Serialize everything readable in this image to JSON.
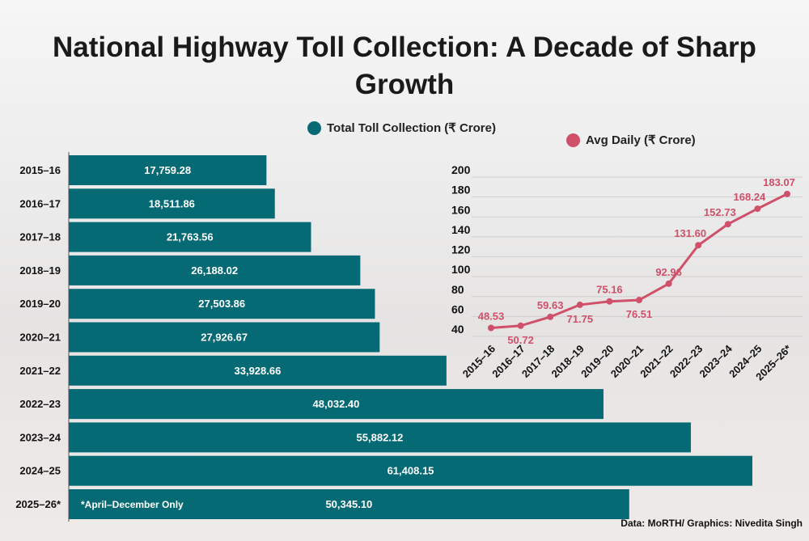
{
  "title": "National Highway Toll Collection: A Decade of Sharp Growth",
  "footnote": "*April–December Only",
  "source": "Data: MoRTH/ Graphics: Nivedita Singh",
  "colors": {
    "bar": "#066a75",
    "line": "#d0506a"
  },
  "chart_data": [
    {
      "type": "bar",
      "orientation": "horizontal",
      "legend": "Total Toll Collection (₹ Crore)",
      "categories": [
        "2015–16",
        "2016–17",
        "2017–18",
        "2018–19",
        "2019–20",
        "2020–21",
        "2021–22",
        "2022–23",
        "2023–24",
        "2024–25",
        "2025–26*"
      ],
      "values": [
        17759.28,
        18511.86,
        21763.56,
        26188.02,
        27503.86,
        27926.67,
        33928.66,
        48032.4,
        55882.12,
        61408.15,
        50345.1
      ],
      "labels": [
        "17,759.28",
        "18,511.86",
        "21,763.56",
        "26,188.02",
        "27,503.86",
        "27,926.67",
        "33,928.66",
        "48,032.40",
        "55,882.12",
        "61,408.15",
        "50,345.10"
      ]
    },
    {
      "type": "line",
      "legend": "Avg Daily (₹ Crore)",
      "categories": [
        "2015–16",
        "2016–17",
        "2017–18",
        "2018–19",
        "2019–20",
        "2020–21",
        "2021–22",
        "2022–23",
        "2023–24",
        "2024–25",
        "2025–26*"
      ],
      "values": [
        48.53,
        50.72,
        59.63,
        71.75,
        75.16,
        76.51,
        92.96,
        131.6,
        152.73,
        168.24,
        183.07
      ],
      "labels": [
        "48.53",
        "50.72",
        "59.63",
        "71.75",
        "75.16",
        "76.51",
        "92.96",
        "131.60",
        "152.73",
        "168.24",
        "183.07"
      ],
      "yticks": [
        40,
        60,
        80,
        100,
        120,
        140,
        160,
        180,
        200
      ],
      "ylim": [
        40,
        200
      ],
      "grid": true
    }
  ]
}
